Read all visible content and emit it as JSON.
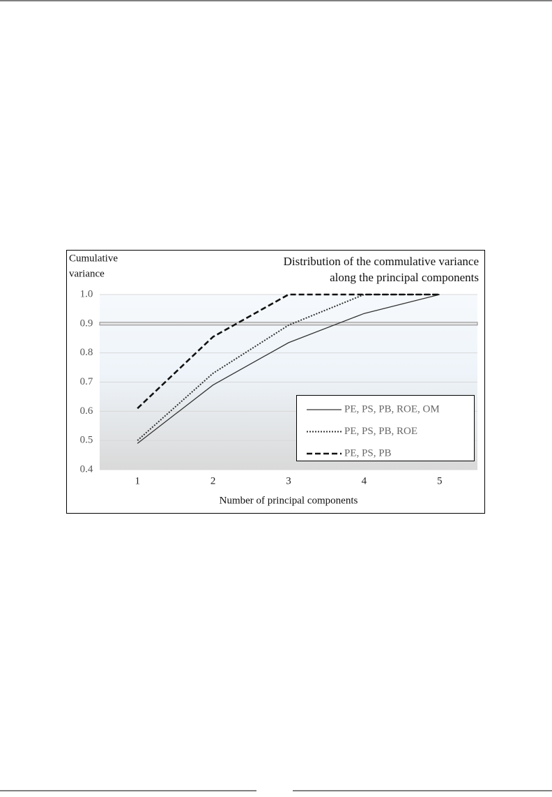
{
  "chart_data": {
    "type": "line",
    "title": [
      "Distribution of the commulative variance",
      "along the principal components"
    ],
    "y_label": [
      "Cumulative",
      "variance"
    ],
    "x_label": "Number of principal components",
    "categories": [
      "1",
      "2",
      "3",
      "4",
      "5"
    ],
    "series": [
      {
        "name": "PE, PS, PB, ROE, OM",
        "color": "#333333",
        "dash": "solid",
        "values": [
          0.49,
          0.69,
          0.835,
          0.935,
          1.0
        ]
      },
      {
        "name": "PE, PS, PB, ROE",
        "color": "#333333",
        "dash": "dotted",
        "values": [
          0.5,
          0.73,
          0.895,
          1.0,
          1.0
        ]
      },
      {
        "name": "PE, PS, PB",
        "color": "#111111",
        "dash": "dashed",
        "values": [
          0.61,
          0.855,
          1.0,
          1.0,
          1.0
        ]
      }
    ],
    "reference_line": 0.9,
    "ylim": [
      0.4,
      1.0
    ],
    "yticks": [
      0.4,
      0.5,
      0.6,
      0.7,
      0.8,
      0.9,
      {
        "value": 1.0,
        "label": "1.0"
      }
    ],
    "grid": true,
    "legend": "bottom-right"
  }
}
